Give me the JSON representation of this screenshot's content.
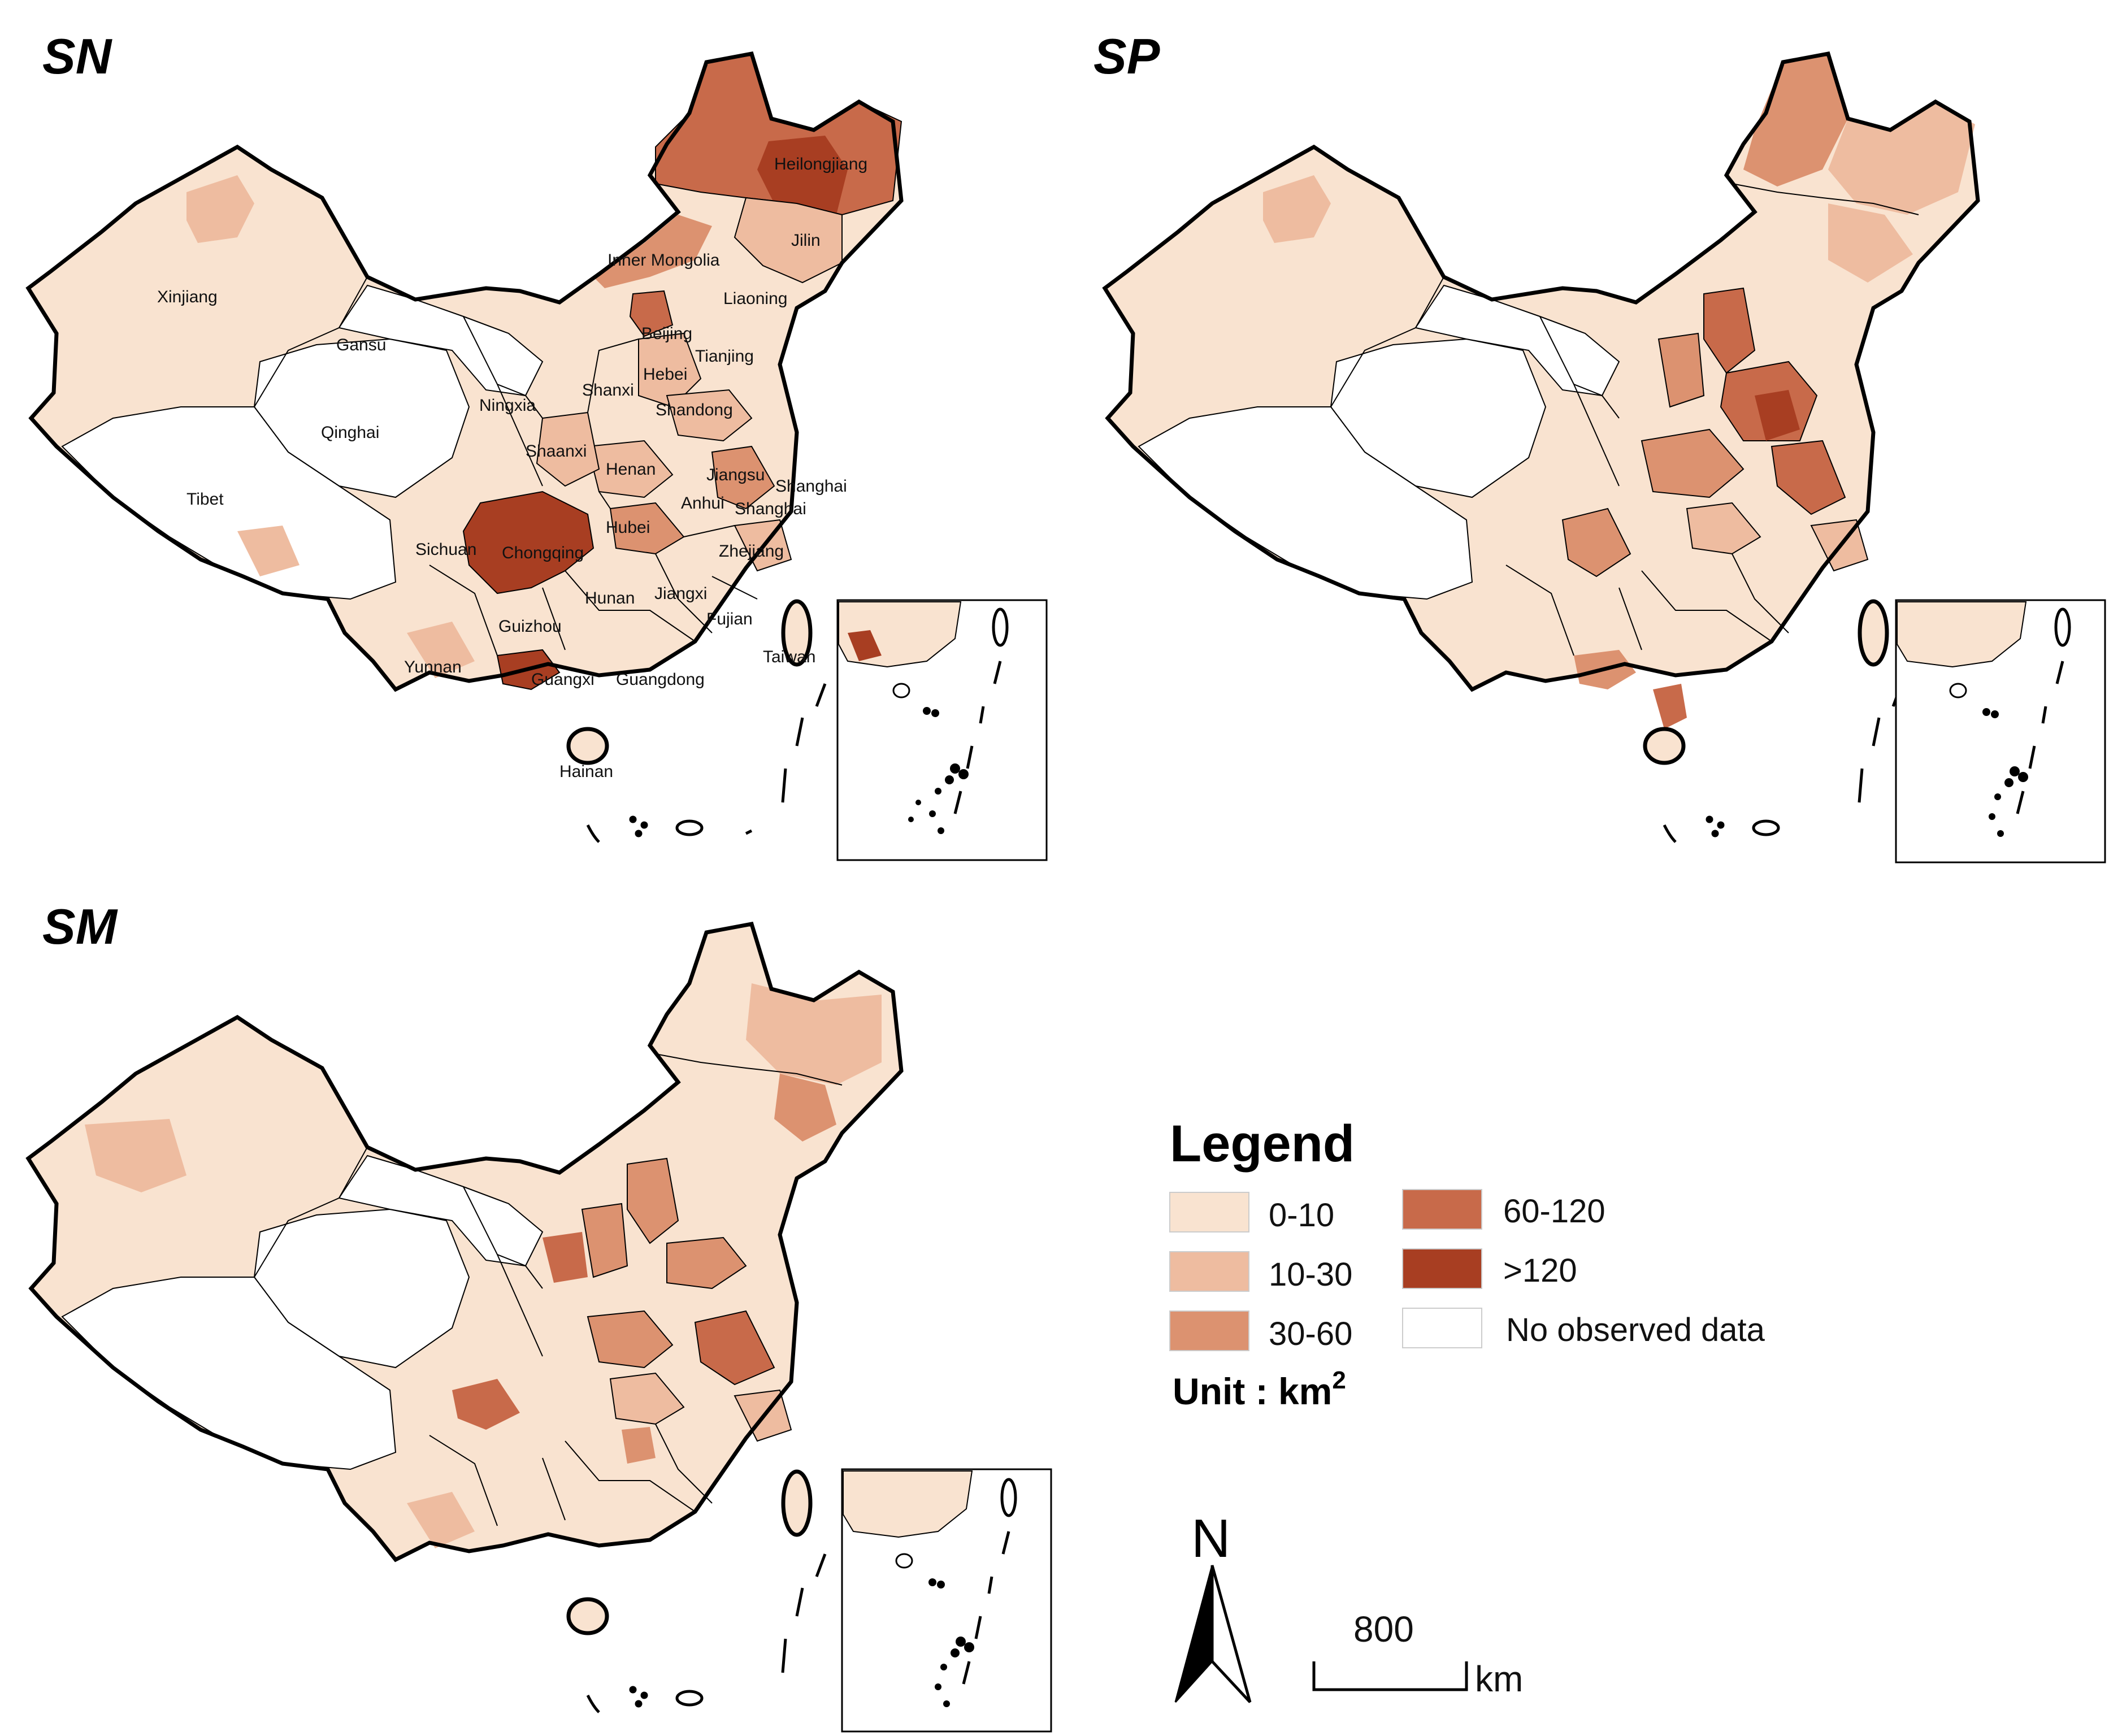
{
  "colors": {
    "c0": "#f9e3d0",
    "c1": "#eebca0",
    "c2": "#dc9270",
    "c3": "#c86a4a",
    "c4": "#a83e22",
    "none": "#ffffff",
    "border": "#000000"
  },
  "panels": [
    {
      "id": "sn",
      "title": "SN"
    },
    {
      "id": "sp",
      "title": "SP"
    },
    {
      "id": "sm",
      "title": "SM"
    }
  ],
  "province_labels": [
    "Heilongjiang",
    "Jilin",
    "Inner Mongolia",
    "Liaoning",
    "Xinjiang",
    "Gansu",
    "Beijing",
    "Tianjing",
    "Hebei",
    "Qinghai",
    "Ningxia",
    "Shanxi",
    "Shandong",
    "Shaanxi",
    "Henan",
    "Jiangsu",
    "Shanghai",
    "Tibet",
    "Anhui",
    "Hubei",
    "Sichuan",
    "Chongqing",
    "Zhejiang",
    "Hunan",
    "Jiangxi",
    "Guizhou",
    "Fujian",
    "Taiwan",
    "Yunnan",
    "Guangxi",
    "Guangdong",
    "Hainan"
  ],
  "legend": {
    "title": "Legend",
    "items": [
      {
        "label": "0-10",
        "color": "#f9e3d0"
      },
      {
        "label": "10-30",
        "color": "#eebca0"
      },
      {
        "label": "30-60",
        "color": "#dc9270"
      },
      {
        "label": "60-120",
        "color": "#c86a4a"
      },
      {
        "label": ">120",
        "color": "#a83e22"
      },
      {
        "label": "No observed data",
        "color": "#ffffff"
      }
    ],
    "unit_prefix": "Unit : km",
    "unit_sup": "2"
  },
  "north_label": "N",
  "scale": {
    "value": "800",
    "unit": "km"
  }
}
